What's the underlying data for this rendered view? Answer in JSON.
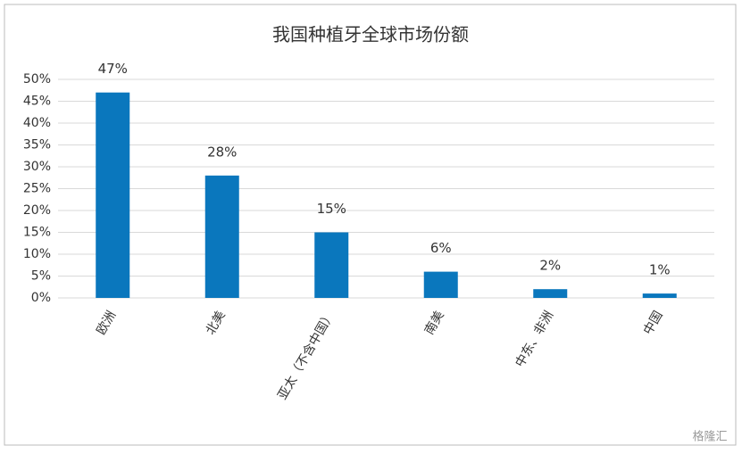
{
  "chart_data": {
    "type": "bar",
    "title": "我国种植牙全球市场份额",
    "categories": [
      "欧洲",
      "北美",
      "亚太（不含中国）",
      "南美",
      "中东、非洲",
      "中国"
    ],
    "values": [
      47,
      28,
      15,
      6,
      2,
      1
    ],
    "value_labels": [
      "47%",
      "28%",
      "15%",
      "6%",
      "2%",
      "1%"
    ],
    "color": "#0a77bd",
    "ylim": [
      0,
      50
    ],
    "yticks": [
      {
        "value": 0,
        "label": "0%"
      },
      {
        "value": 5,
        "label": "5%"
      },
      {
        "value": 10,
        "label": "10%"
      },
      {
        "value": 15,
        "label": "15%"
      },
      {
        "value": 20,
        "label": "20%"
      },
      {
        "value": 25,
        "label": "25%"
      },
      {
        "value": 30,
        "label": "30%"
      },
      {
        "value": 35,
        "label": "35%"
      },
      {
        "value": 40,
        "label": "40%"
      },
      {
        "value": 45,
        "label": "45%"
      },
      {
        "value": 50,
        "label": "50%"
      }
    ],
    "grid": true,
    "watermark": "格隆汇"
  }
}
